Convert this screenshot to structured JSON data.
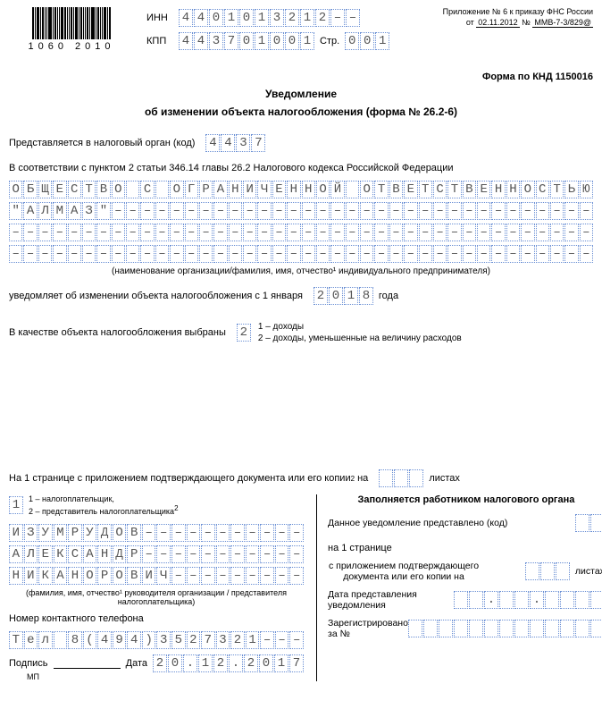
{
  "barcode_num": "1060 2010",
  "inn_label": "ИНН",
  "kpp_label": "КПП",
  "page_label": "Стр.",
  "inn": [
    "4",
    "4",
    "0",
    "1",
    "0",
    "1",
    "3",
    "2",
    "1",
    "2",
    "–",
    "–"
  ],
  "kpp": [
    "4",
    "4",
    "3",
    "7",
    "0",
    "1",
    "0",
    "0",
    "1"
  ],
  "page": [
    "0",
    "0",
    "1"
  ],
  "annex_l1": "Приложение № 6 к приказу ФНС России",
  "annex_from": "от",
  "annex_date": "02.11.2012",
  "annex_no": "№",
  "annex_num": "ММВ-7-3/829@",
  "form_code": "Форма по КНД 1150016",
  "title_l1": "Уведомление",
  "title_l2": "об изменении объекта налогообложения (форма № 26.2-6)",
  "present_label": "Представляется в налоговый орган (код)",
  "tax_code": [
    "4",
    "4",
    "3",
    "7"
  ],
  "law_ref": "В соответствии с пунктом 2 статьи 346.14 главы 26.2 Налогового кодекса Российской Федерации",
  "org1": [
    "О",
    "Б",
    "Щ",
    "Е",
    "С",
    "Т",
    "В",
    "О",
    "",
    "С",
    "",
    "О",
    "Г",
    "Р",
    "А",
    "Н",
    "И",
    "Ч",
    "Е",
    "Н",
    "Н",
    "О",
    "Й",
    "",
    "О",
    "Т",
    "В",
    "Е",
    "Т",
    "С",
    "Т",
    "В",
    "Е",
    "Н",
    "Н",
    "О",
    "С",
    "Т",
    "Ь",
    "Ю"
  ],
  "org2": [
    "\"",
    "А",
    "Л",
    "М",
    "А",
    "З",
    "\"",
    "–",
    "–",
    "–",
    "–",
    "–",
    "–",
    "–",
    "–",
    "–",
    "–",
    "–",
    "–",
    "–",
    "–",
    "–",
    "–",
    "–",
    "–",
    "–",
    "–",
    "–",
    "–",
    "–",
    "–",
    "–",
    "–",
    "–",
    "–",
    "–",
    "–",
    "–",
    "–",
    "–"
  ],
  "org3": [
    "–",
    "–",
    "–",
    "–",
    "–",
    "–",
    "–",
    "–",
    "–",
    "–",
    "–",
    "–",
    "–",
    "–",
    "–",
    "–",
    "–",
    "–",
    "–",
    "–",
    "–",
    "–",
    "–",
    "–",
    "–",
    "–",
    "–",
    "–",
    "–",
    "–",
    "–",
    "–",
    "–",
    "–",
    "–",
    "–",
    "–",
    "–",
    "–",
    "–"
  ],
  "org4": [
    "–",
    "–",
    "–",
    "–",
    "–",
    "–",
    "–",
    "–",
    "–",
    "–",
    "–",
    "–",
    "–",
    "–",
    "–",
    "–",
    "–",
    "–",
    "–",
    "–",
    "–",
    "–",
    "–",
    "–",
    "–",
    "–",
    "–",
    "–",
    "–",
    "–",
    "–",
    "–",
    "–",
    "–",
    "–",
    "–",
    "–",
    "–",
    "–",
    "–"
  ],
  "name_hint": "(наименование организации/фамилия, имя, отчество¹ индивидуального предпринимателя)",
  "notify_l": "уведомляет об изменении объекта налогообложения с 1 января",
  "year": [
    "2",
    "0",
    "1",
    "8"
  ],
  "year_suffix": "года",
  "object_label": "В качестве объекта налогообложения выбраны",
  "object_val": "2",
  "object_opt1": "1 – доходы",
  "object_opt2": "2 – доходы, уменьшенные на  величину расходов",
  "pages_l1a": "На",
  "pages_l1b": "1",
  "pages_l1c": "странице с приложением подтверждающего документа  или его копии",
  "pages_sup": "2",
  "pages_l1d": "на",
  "sheets": [
    "",
    "",
    ""
  ],
  "pages_l1e": "листах",
  "submitter_val": "1",
  "submitter_opt1": "1 – налогоплательщик,",
  "submitter_opt2": "2 – представитель налогоплательщика",
  "fio1": [
    "И",
    "З",
    "У",
    "М",
    "Р",
    "У",
    "Д",
    "О",
    "В",
    "–",
    "–",
    "–",
    "–",
    "–",
    "–",
    "–",
    "–",
    "–",
    "–",
    "–"
  ],
  "fio2": [
    "А",
    "Л",
    "Е",
    "К",
    "С",
    "А",
    "Н",
    "Д",
    "Р",
    "–",
    "–",
    "–",
    "–",
    "–",
    "–",
    "–",
    "–",
    "–",
    "–",
    "–"
  ],
  "fio3": [
    "Н",
    "И",
    "К",
    "А",
    "Н",
    "О",
    "Р",
    "О",
    "В",
    "И",
    "Ч",
    "–",
    "–",
    "–",
    "–",
    "–",
    "–",
    "–",
    "–",
    "–"
  ],
  "fio_hint": "(фамилия, имя, отчество¹ руководителя организации / представителя налогоплательщика)",
  "phone_label": "Номер контактного телефона",
  "phone": [
    "Т",
    "е",
    "л",
    "",
    "8",
    "(",
    "4",
    "9",
    "4",
    ")",
    "3",
    "5",
    "2",
    "7",
    "3",
    "2",
    "1",
    "–",
    "–",
    "–"
  ],
  "sig_label": "Подпись",
  "date_label": "Дата",
  "sign_date": [
    "2",
    "0",
    ".",
    "1",
    "2",
    ".",
    "2",
    "0",
    "1",
    "7"
  ],
  "mp": "МП",
  "right_title": "Заполняется работником налогового органа",
  "right_l1": "Данное уведомление представлено (код)",
  "right_code": [
    "",
    ""
  ],
  "right_l2": "на 1 странице",
  "right_l3": "с приложением подтверждающего документа или его копии на",
  "right_sheets": [
    "",
    "",
    ""
  ],
  "right_l3b": "листах",
  "right_l4": "Дата представления уведомления",
  "right_date": [
    "",
    "",
    ".",
    "",
    "",
    ".",
    "",
    "",
    "",
    ""
  ],
  "right_l5a": "Зарегистрировано",
  "right_l5b": "за №",
  "right_regno": [
    "",
    "",
    "",
    "",
    "",
    "",
    "",
    "",
    "",
    "",
    "",
    "",
    ""
  ]
}
